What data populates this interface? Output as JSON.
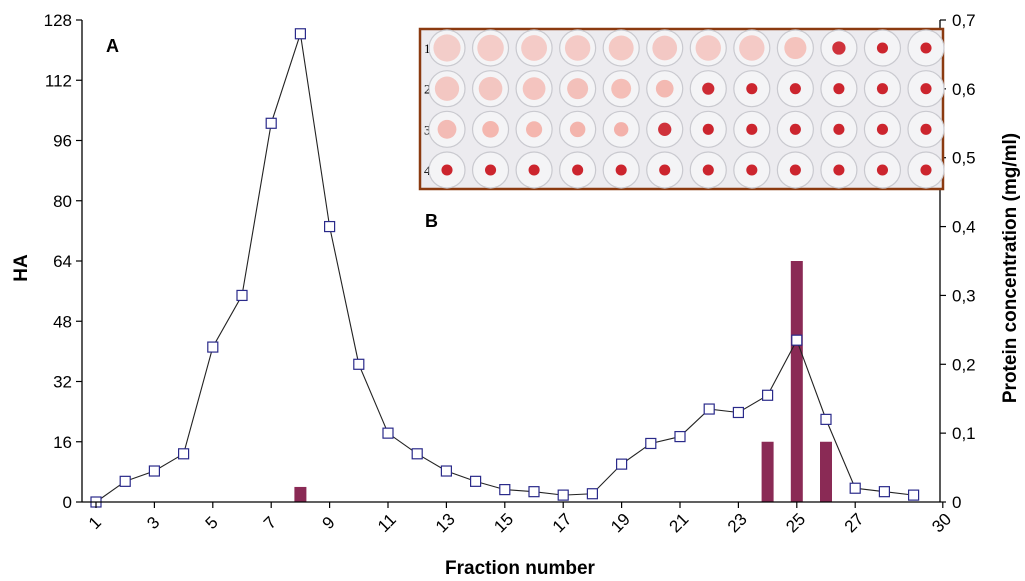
{
  "chart_data": {
    "type": "bar+line",
    "xlabel": "Fraction number",
    "ylabel": "HA",
    "y2label": "Protein concentration (mg/ml)",
    "panel_label_a": "A",
    "panel_label_b": "B",
    "xlim": [
      1,
      30
    ],
    "x_ticks": [
      1,
      3,
      5,
      7,
      9,
      11,
      13,
      15,
      17,
      19,
      21,
      23,
      25,
      27,
      30
    ],
    "ylim": [
      0,
      128
    ],
    "y_ticks": [
      0,
      16,
      32,
      48,
      64,
      80,
      96,
      112,
      128
    ],
    "y2lim": [
      0,
      0.7
    ],
    "y2_ticks": [
      "0",
      "0,1",
      "0,2",
      "0,3",
      "0,4",
      "0,5",
      "0,6",
      "0,7"
    ],
    "bars": [
      {
        "x": 8,
        "value": 4
      },
      {
        "x": 24,
        "value": 16
      },
      {
        "x": 25,
        "value": 64
      },
      {
        "x": 26,
        "value": 16
      }
    ],
    "protein_series": {
      "marker": "open-square",
      "points": [
        [
          1,
          0.0
        ],
        [
          2,
          0.03
        ],
        [
          3,
          0.045
        ],
        [
          4,
          0.07
        ],
        [
          5,
          0.225
        ],
        [
          6,
          0.3
        ],
        [
          7,
          0.55
        ],
        [
          8,
          0.68
        ],
        [
          9,
          0.4
        ],
        [
          10,
          0.2
        ],
        [
          11,
          0.1
        ],
        [
          12,
          0.07
        ],
        [
          13,
          0.045
        ],
        [
          14,
          0.03
        ],
        [
          15,
          0.018
        ],
        [
          16,
          0.015
        ],
        [
          17,
          0.01
        ],
        [
          18,
          0.012
        ],
        [
          19,
          0.055
        ],
        [
          20,
          0.085
        ],
        [
          21,
          0.095
        ],
        [
          22,
          0.135
        ],
        [
          23,
          0.13
        ],
        [
          24,
          0.155
        ],
        [
          25,
          0.235
        ],
        [
          26,
          0.12
        ],
        [
          27,
          0.02
        ],
        [
          28,
          0.015
        ],
        [
          29,
          0.01
        ]
      ]
    },
    "inset": {
      "row_labels": [
        "1",
        "2",
        "3",
        "4"
      ],
      "columns": 12,
      "agglutination_pattern": [
        [
          0.22,
          0.25,
          0.28,
          0.3,
          0.32,
          0.33,
          0.3,
          0.3,
          0.45,
          0.85,
          0.95,
          0.95
        ],
        [
          0.35,
          0.38,
          0.42,
          0.5,
          0.55,
          0.65,
          0.9,
          0.95,
          0.95,
          0.95,
          0.95,
          0.95
        ],
        [
          0.6,
          0.7,
          0.72,
          0.75,
          0.8,
          0.85,
          0.95,
          0.95,
          0.95,
          0.95,
          0.95,
          0.95
        ],
        [
          0.95,
          0.95,
          0.95,
          0.95,
          0.95,
          0.95,
          0.95,
          0.95,
          0.95,
          0.95,
          0.95,
          0.95
        ]
      ]
    },
    "colors": {
      "bar": "#8a2a55",
      "line": "#222222",
      "marker_stroke": "#2a2a8a",
      "inset_border": "#8b3a10",
      "blood": "#c8121c",
      "blood_light": "#f3a49a"
    }
  }
}
